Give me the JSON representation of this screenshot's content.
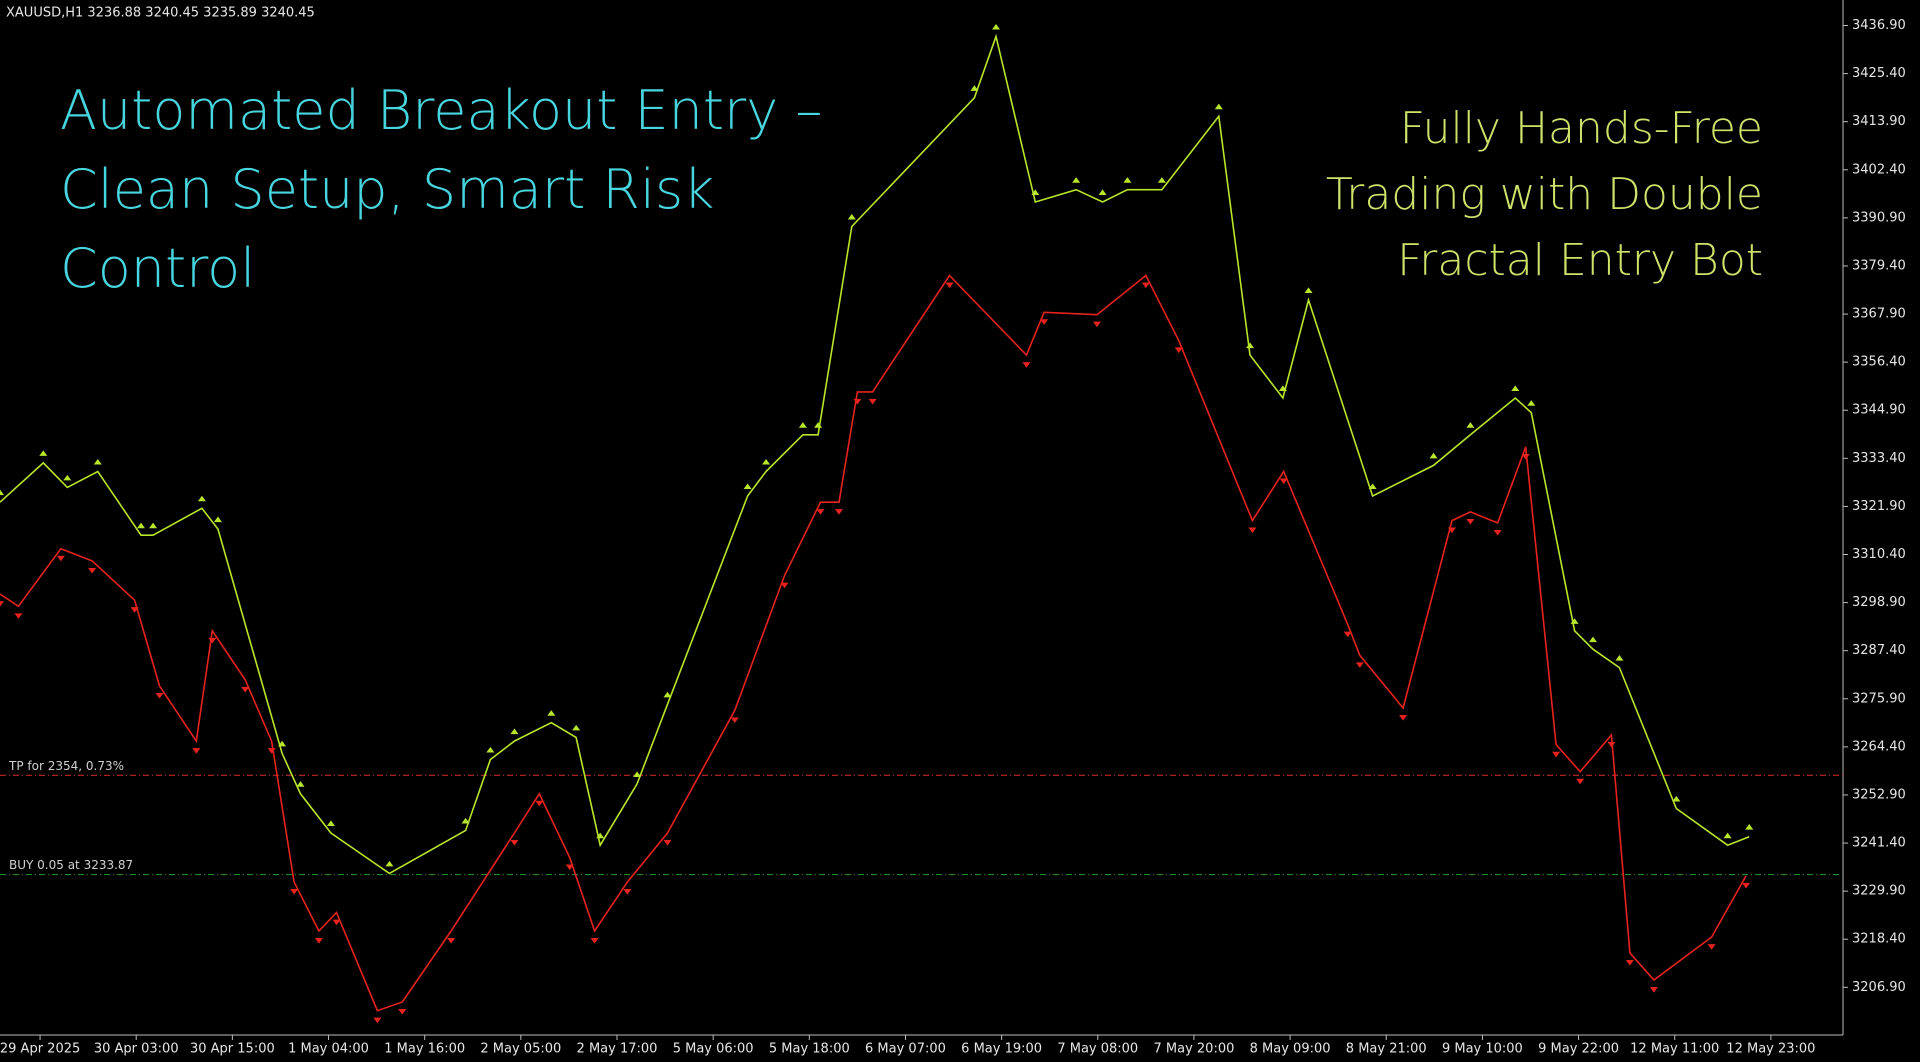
{
  "chart_data": {
    "type": "line",
    "header": "XAUUSD,H1  3236.88 3240.45 3235.89 3240.45",
    "title_left": [
      "Automated Breakout Entry –",
      "Clean Setup, Smart Risk",
      "Control"
    ],
    "title_right": [
      "Fully Hands-Free",
      "Trading with Double",
      "Fractal Entry Bot"
    ],
    "xlim": [
      0,
      230
    ],
    "xticks": [
      {
        "value": 5,
        "label": "29 Apr 2025"
      },
      {
        "value": 17,
        "label": "30 Apr 03:00"
      },
      {
        "value": 29,
        "label": "30 Apr 15:00"
      },
      {
        "value": 41,
        "label": "1 May 04:00"
      },
      {
        "value": 53,
        "label": "1 May 16:00"
      },
      {
        "value": 65,
        "label": "2 May 05:00"
      },
      {
        "value": 77,
        "label": "2 May 17:00"
      },
      {
        "value": 89,
        "label": "5 May 06:00"
      },
      {
        "value": 101,
        "label": "5 May 18:00"
      },
      {
        "value": 113,
        "label": "6 May 07:00"
      },
      {
        "value": 125,
        "label": "6 May 19:00"
      },
      {
        "value": 137,
        "label": "7 May 08:00"
      },
      {
        "value": 149,
        "label": "7 May 20:00"
      },
      {
        "value": 161,
        "label": "8 May 09:00"
      },
      {
        "value": 173,
        "label": "8 May 21:00"
      },
      {
        "value": 185,
        "label": "9 May 10:00"
      },
      {
        "value": 197,
        "label": "9 May 22:00"
      },
      {
        "value": 209,
        "label": "12 May 11:00"
      },
      {
        "value": 221,
        "label": "12 May 23:00"
      }
    ],
    "ylim": [
      3195.5,
      3443.0
    ],
    "yticks": [
      {
        "value": 3206.9,
        "label": "3206.90"
      },
      {
        "value": 3218.4,
        "label": "3218.40"
      },
      {
        "value": 3229.9,
        "label": "3229.90"
      },
      {
        "value": 3241.4,
        "label": "3241.40"
      },
      {
        "value": 3252.9,
        "label": "3252.90"
      },
      {
        "value": 3264.4,
        "label": "3264.40"
      },
      {
        "value": 3275.9,
        "label": "3275.90"
      },
      {
        "value": 3287.4,
        "label": "3287.40"
      },
      {
        "value": 3298.9,
        "label": "3298.90"
      },
      {
        "value": 3310.4,
        "label": "3310.40"
      },
      {
        "value": 3321.9,
        "label": "3321.90"
      },
      {
        "value": 3333.4,
        "label": "3333.40"
      },
      {
        "value": 3344.9,
        "label": "3344.90"
      },
      {
        "value": 3356.4,
        "label": "3356.40"
      },
      {
        "value": 3367.9,
        "label": "3367.90"
      },
      {
        "value": 3379.4,
        "label": "3379.40"
      },
      {
        "value": 3390.9,
        "label": "3390.90"
      },
      {
        "value": 3402.4,
        "label": "3402.40"
      },
      {
        "value": 3413.9,
        "label": "3413.90"
      },
      {
        "value": 3425.4,
        "label": "3425.40"
      },
      {
        "value": 3436.9,
        "label": "3436.90"
      }
    ],
    "series": [
      {
        "color": "#b8e62a",
        "x": [
          0,
          5.4,
          8.4,
          12.2,
          17.6,
          19.1,
          25.2,
          27.2,
          35.2,
          37.5,
          41.3,
          48.6,
          58.1,
          61.2,
          64.2,
          68.8,
          71.9,
          74.9,
          79.5,
          83.3,
          93.3,
          95.6,
          100.2,
          102.1,
          106.3,
          121.6,
          124.3,
          129.2,
          134.3,
          137.6,
          140.7,
          145.0,
          152.1,
          156.0,
          160.1,
          163.3,
          171.3,
          178.9,
          183.5,
          189.1,
          191.1,
          196.5,
          198.8,
          202.1,
          209.2,
          215.6,
          218.3
        ],
        "values": [
          3322.92,
          3332.3,
          3326.44,
          3330.24,
          3315.01,
          3315.01,
          3321.45,
          3316.47,
          3262.85,
          3253.19,
          3243.81,
          3234.14,
          3244.4,
          3261.39,
          3265.78,
          3270.18,
          3266.66,
          3240.88,
          3255.53,
          3274.57,
          3324.38,
          3330.24,
          3339.03,
          3339.03,
          3388.84,
          3419.61,
          3434.26,
          3394.7,
          3397.63,
          3394.7,
          3397.63,
          3397.63,
          3415.21,
          3358.08,
          3347.82,
          3371.26,
          3324.38,
          3331.71,
          3339.03,
          3347.82,
          3344.31,
          3292.15,
          3287.76,
          3283.36,
          3249.67,
          3240.88,
          3242.93
        ]
      },
      {
        "color": "#e8231f",
        "x": [
          0,
          2.3,
          7.6,
          11.5,
          16.8,
          19.9,
          24.5,
          26.5,
          30.6,
          33.9,
          36.7,
          39.8,
          42.0,
          47.1,
          50.2,
          56.3,
          64.2,
          67.3,
          71.1,
          74.2,
          78.3,
          83.3,
          91.7,
          97.9,
          102.4,
          104.7,
          107.0,
          108.9,
          118.5,
          128.1,
          130.3,
          136.9,
          143.0,
          147.1,
          156.3,
          160.2,
          168.2,
          169.7,
          175.1,
          181.2,
          183.5,
          186.9,
          190.4,
          194.2,
          197.2,
          201.1,
          203.4,
          206.4,
          213.6,
          217.9
        ],
        "values": [
          3300.94,
          3298.01,
          3311.79,
          3308.86,
          3299.48,
          3278.97,
          3265.78,
          3292.15,
          3280.43,
          3265.78,
          3232.09,
          3220.37,
          3224.76,
          3201.32,
          3203.38,
          3220.37,
          3243.81,
          3253.19,
          3237.95,
          3220.37,
          3232.09,
          3243.81,
          3273.11,
          3305.34,
          3322.92,
          3322.92,
          3349.29,
          3349.29,
          3377.12,
          3358.08,
          3368.33,
          3367.75,
          3377.12,
          3361.6,
          3318.52,
          3330.24,
          3293.62,
          3286.29,
          3273.7,
          3318.52,
          3320.58,
          3317.94,
          3336.1,
          3264.91,
          3258.46,
          3267.25,
          3215.1,
          3208.65,
          3218.9,
          3233.55
        ]
      }
    ],
    "levels": [
      {
        "label": "TP for 2354, 0.73%",
        "value": 3257.6,
        "color": "#c0282a"
      },
      {
        "label": "BUY 0.05 at 3233.87",
        "value": 3233.87,
        "color": "#1f8a2a"
      }
    ]
  }
}
